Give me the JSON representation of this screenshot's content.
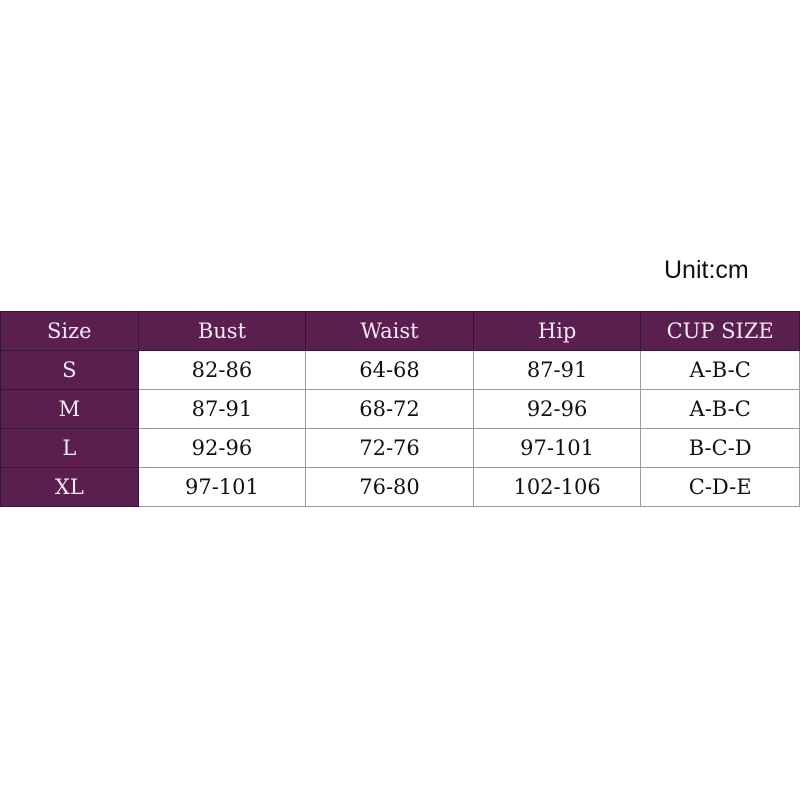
{
  "unit_label": "Unit:cm",
  "colors": {
    "header_bg": "#5b1f4f",
    "header_text": "#f3e9f3"
  },
  "table": {
    "headers": [
      "Size",
      "Bust",
      "Waist",
      "Hip",
      "CUP SIZE"
    ],
    "rows": [
      [
        "S",
        "82-86",
        "64-68",
        "87-91",
        "A-B-C"
      ],
      [
        "M",
        "87-91",
        "68-72",
        "92-96",
        "A-B-C"
      ],
      [
        "L",
        "92-96",
        "72-76",
        "97-101",
        "B-C-D"
      ],
      [
        "XL",
        "97-101",
        "76-80",
        "102-106",
        "C-D-E"
      ]
    ]
  }
}
